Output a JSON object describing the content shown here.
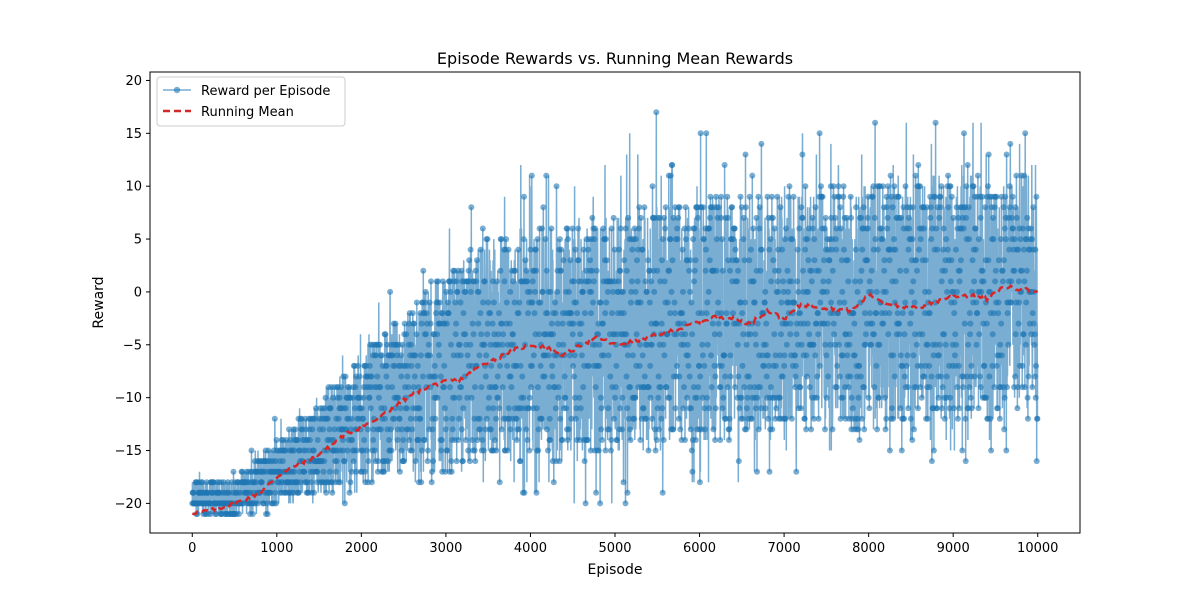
{
  "chart_data": {
    "type": "line",
    "title": "Episode Rewards vs. Running Mean Rewards",
    "xlabel": "Episode",
    "ylabel": "Reward",
    "xlim": [
      -500,
      10500
    ],
    "ylim": [
      -22.8,
      20.8
    ],
    "xticks": [
      0,
      1000,
      2000,
      3000,
      4000,
      5000,
      6000,
      7000,
      8000,
      9000,
      10000
    ],
    "yticks": [
      -20,
      -15,
      -10,
      -5,
      0,
      5,
      10,
      15,
      20
    ],
    "grid": false,
    "legend_position": "upper-left",
    "series": [
      {
        "name": "Reward per Episode",
        "color": "#1f77b4",
        "style": "solid line with circle markers",
        "episodes": [
          1,
          10000
        ],
        "envelope": {
          "x": [
            0,
            500,
            1000,
            1500,
            2000,
            2500,
            3000,
            3500,
            4000,
            4500,
            5000,
            5500,
            6000,
            6500,
            7000,
            7500,
            8000,
            8500,
            9000,
            9500,
            10000
          ],
          "low": [
            -21,
            -21,
            -21,
            -21,
            -20,
            -19,
            -19,
            -19,
            -19,
            -20,
            -21,
            -19,
            -19,
            -18,
            -17,
            -16,
            -15,
            -16,
            -17,
            -17,
            -17
          ],
          "high": [
            -17,
            -16,
            -10,
            -6,
            -3,
            4,
            7,
            11,
            13,
            14,
            13,
            19,
            15,
            15,
            16,
            15,
            18,
            16,
            17,
            16,
            16
          ],
          "typical_low": [
            -21,
            -21,
            -20,
            -19,
            -18,
            -17,
            -17,
            -16,
            -16,
            -16,
            -15,
            -15,
            -14,
            -14,
            -13,
            -13,
            -13,
            -12,
            -12,
            -12,
            -12
          ],
          "typical_high": [
            -18,
            -18,
            -14,
            -10,
            -6,
            -2,
            2,
            5,
            6,
            7,
            7,
            8,
            9,
            9,
            10,
            10,
            10,
            11,
            11,
            11,
            12
          ]
        }
      },
      {
        "name": "Running Mean",
        "color": "#d62728",
        "style": "dashed",
        "x": [
          0,
          200,
          400,
          600,
          800,
          1000,
          1200,
          1400,
          1600,
          1800,
          2000,
          2200,
          2400,
          2600,
          2800,
          3000,
          3200,
          3400,
          3600,
          3800,
          4000,
          4200,
          4400,
          4600,
          4800,
          5000,
          5200,
          5400,
          5600,
          5800,
          6000,
          6200,
          6400,
          6600,
          6800,
          7000,
          7200,
          7400,
          7600,
          7800,
          8000,
          8200,
          8400,
          8600,
          8800,
          9000,
          9200,
          9400,
          9600,
          9800,
          10000
        ],
        "values": [
          -20.9,
          -20.7,
          -20.3,
          -19.7,
          -19.0,
          -17.5,
          -16.5,
          -15.8,
          -14.8,
          -13.5,
          -12.8,
          -12.0,
          -10.8,
          -9.7,
          -8.9,
          -8.5,
          -8.2,
          -7.0,
          -6.3,
          -5.5,
          -5.0,
          -5.2,
          -6.0,
          -5.0,
          -4.3,
          -5.0,
          -4.7,
          -4.3,
          -3.8,
          -3.4,
          -2.8,
          -2.3,
          -2.5,
          -3.0,
          -1.8,
          -2.5,
          -1.2,
          -1.4,
          -1.6,
          -1.8,
          -0.3,
          -1.0,
          -1.5,
          -1.5,
          -0.9,
          -0.4,
          -0.3,
          -0.7,
          0.5,
          0.3,
          0.0
        ]
      }
    ]
  }
}
